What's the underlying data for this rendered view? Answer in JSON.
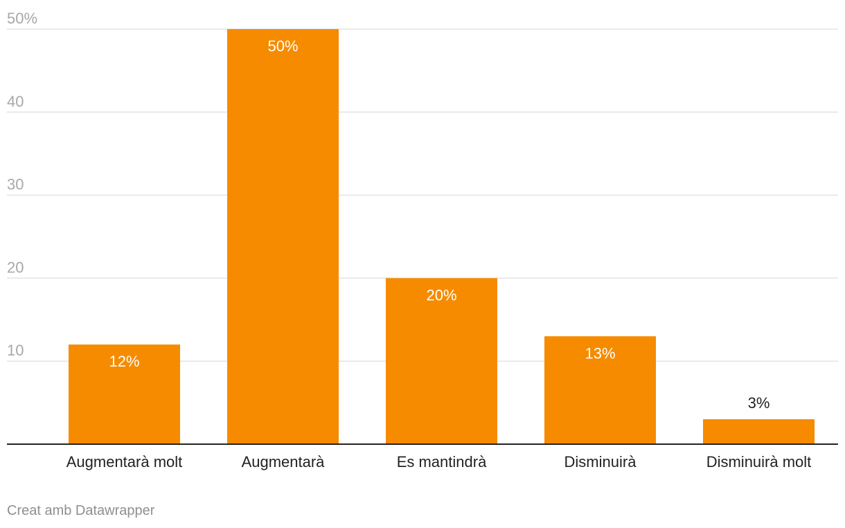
{
  "chart_data": {
    "type": "bar",
    "categories": [
      "Augmentarà molt",
      "Augmentarà",
      "Es mantindrà",
      "Disminuirà",
      "Disminuirà molt"
    ],
    "values": [
      12,
      50,
      20,
      13,
      3
    ],
    "value_labels": [
      "12%",
      "50%",
      "20%",
      "13%",
      "3%"
    ],
    "ylim": [
      0,
      50
    ],
    "yticks": [
      10,
      20,
      30,
      40,
      50
    ],
    "ytick_labels": [
      "10",
      "20",
      "30",
      "40",
      "50%"
    ],
    "grid": true,
    "bar_color": "#f68b00",
    "title": "",
    "xlabel": "",
    "ylabel": ""
  },
  "footer": "Creat amb Datawrapper"
}
